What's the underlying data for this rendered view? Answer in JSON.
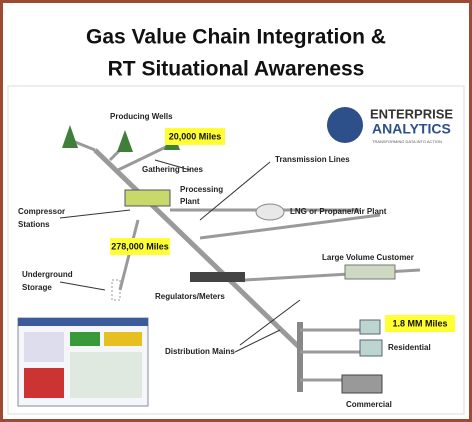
{
  "header": {
    "title_lines": [
      "Gas Value Chain Integration &",
      "RT Situational Awareness"
    ]
  },
  "logo": {
    "name_lines": [
      "ENTERPRISE",
      "ANALYTICS"
    ],
    "tagline": "TRANSFORMING DATA INTO ACTION"
  },
  "labels": {
    "producing_wells": "Producing Wells",
    "gathering_lines": "Gathering Lines",
    "transmission_lines": "Transmission Lines",
    "processing_plant": [
      "Processing",
      "Plant"
    ],
    "compressor_stations": [
      "Compressor",
      "Stations"
    ],
    "lng_plant": "LNG or Propane/Air Plant",
    "large_volume_customer": "Large Volume Customer",
    "underground_storage": [
      "Underground",
      "Storage"
    ],
    "regulators_meters": "Regulators/Meters",
    "distribution_mains": "Distribution Mains",
    "residential": "Residential",
    "commercial": "Commercial"
  },
  "highlights": {
    "gathering": "20,000 Miles",
    "transmission": "278,000 Miles",
    "distribution": "1.8 MM Miles"
  }
}
